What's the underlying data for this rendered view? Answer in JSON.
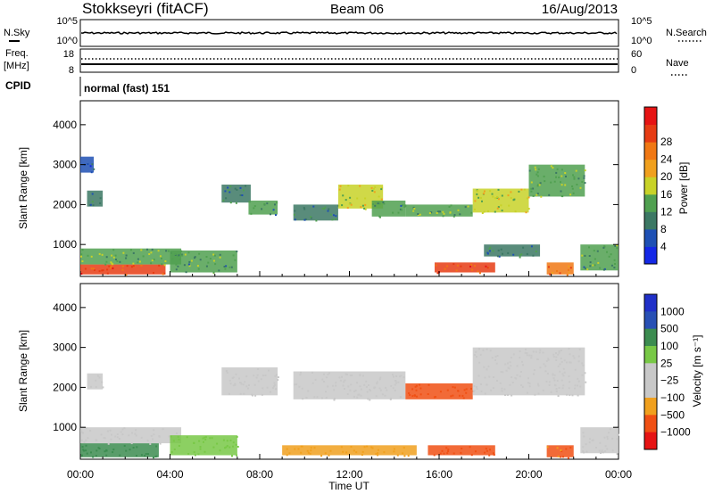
{
  "header": {
    "station": "Stokkseyri (fitACF)",
    "beam": "Beam 06",
    "date": "16/Aug/2013"
  },
  "top_panel": {
    "left_label": "N.Sky",
    "right_label": "N.Search",
    "ticks_left": [
      "10^5",
      "10^0"
    ],
    "ticks_right": [
      "10^5",
      "10^0"
    ]
  },
  "freq_panel": {
    "left_label_1": "Freq.",
    "left_label_2": "[MHz]",
    "ticks_left": [
      "18",
      "8"
    ],
    "right_label": "Nave",
    "ticks_right": [
      "60",
      "0"
    ]
  },
  "cpid": {
    "label": "CPID",
    "value": "normal (fast) 151"
  },
  "colors": {
    "power_scale": [
      "#1428e6",
      "#1e50b4",
      "#3c7864",
      "#50a050",
      "#c8d228",
      "#f0a01e",
      "#f07814",
      "#e63c14",
      "#e61414"
    ],
    "velocity_scale": [
      "#e61414",
      "#f05014",
      "#f0a01e",
      "#c8c8c8",
      "#c8c8c8",
      "#78c846",
      "#3c8c50",
      "#2850b4",
      "#2030c8"
    ]
  },
  "chart_data": [
    {
      "type": "heatmap",
      "name": "power",
      "ylabel": "Slant Range [km]",
      "xlabel": "",
      "x_ticks": [
        "00:00",
        "04:00",
        "08:00",
        "12:00",
        "16:00",
        "20:00",
        "00:00"
      ],
      "y_ticks": [
        "1000",
        "2000",
        "3000",
        "4000"
      ],
      "ylim": [
        200,
        4600
      ],
      "colorbar": {
        "label": "Power [dB]",
        "ticks": [
          "4",
          "8",
          "12",
          "16",
          "20",
          "24",
          "28"
        ]
      },
      "regions": [
        {
          "t0": 0.0,
          "t1": 3.8,
          "r0": 250,
          "r1": 500,
          "value": 24
        },
        {
          "t0": 0.0,
          "t1": 4.5,
          "r0": 500,
          "r1": 900,
          "value": 12
        },
        {
          "t0": 4.0,
          "t1": 7.0,
          "r0": 300,
          "r1": 850,
          "value": 10
        },
        {
          "t0": 0.3,
          "t1": 1.0,
          "r0": 1950,
          "r1": 2350,
          "value": 8
        },
        {
          "t0": 0.0,
          "t1": 0.6,
          "r0": 2800,
          "r1": 3200,
          "value": 6
        },
        {
          "t0": 6.3,
          "t1": 7.6,
          "r0": 2050,
          "r1": 2500,
          "value": 8
        },
        {
          "t0": 7.5,
          "t1": 8.8,
          "r0": 1750,
          "r1": 2100,
          "value": 10
        },
        {
          "t0": 9.5,
          "t1": 11.5,
          "r0": 1600,
          "r1": 2000,
          "value": 8
        },
        {
          "t0": 11.5,
          "t1": 13.5,
          "r0": 1900,
          "r1": 2500,
          "value": 14
        },
        {
          "t0": 13.0,
          "t1": 14.5,
          "r0": 1700,
          "r1": 2100,
          "value": 10
        },
        {
          "t0": 14.5,
          "t1": 17.5,
          "r0": 1700,
          "r1": 2000,
          "value": 12
        },
        {
          "t0": 15.8,
          "t1": 18.5,
          "r0": 300,
          "r1": 550,
          "value": 24
        },
        {
          "t0": 17.5,
          "t1": 20.0,
          "r0": 1800,
          "r1": 2400,
          "value": 14
        },
        {
          "t0": 20.0,
          "t1": 22.5,
          "r0": 2200,
          "r1": 3000,
          "value": 12
        },
        {
          "t0": 20.8,
          "t1": 22.0,
          "r0": 250,
          "r1": 550,
          "value": 22
        },
        {
          "t0": 22.3,
          "t1": 24.0,
          "r0": 350,
          "r1": 1000,
          "value": 10
        },
        {
          "t0": 18.0,
          "t1": 20.5,
          "r0": 700,
          "r1": 1000,
          "value": 8
        }
      ]
    },
    {
      "type": "heatmap",
      "name": "velocity",
      "ylabel": "Slant Range [km]",
      "xlabel": "Time UT",
      "x_ticks": [
        "00:00",
        "04:00",
        "08:00",
        "12:00",
        "16:00",
        "20:00",
        "00:00"
      ],
      "y_ticks": [
        "1000",
        "2000",
        "3000",
        "4000"
      ],
      "ylim": [
        200,
        4600
      ],
      "colorbar": {
        "label": "Velocity [m s⁻¹]",
        "ticks": [
          "1000",
          "500",
          "100",
          "25",
          "−25",
          "−100",
          "−500",
          "−1000"
        ]
      },
      "regions": [
        {
          "t0": 0.0,
          "t1": 3.5,
          "r0": 250,
          "r1": 600,
          "value": 150
        },
        {
          "t0": 0.0,
          "t1": 4.5,
          "r0": 600,
          "r1": 1000,
          "value": 0
        },
        {
          "t0": 4.0,
          "t1": 7.0,
          "r0": 300,
          "r1": 800,
          "value": 50
        },
        {
          "t0": 0.3,
          "t1": 1.0,
          "r0": 1950,
          "r1": 2350,
          "value": 0
        },
        {
          "t0": 6.3,
          "t1": 8.8,
          "r0": 1800,
          "r1": 2500,
          "value": 0
        },
        {
          "t0": 9.5,
          "t1": 14.5,
          "r0": 1700,
          "r1": 2400,
          "value": 0
        },
        {
          "t0": 14.5,
          "t1": 17.5,
          "r0": 1700,
          "r1": 2100,
          "value": -150
        },
        {
          "t0": 15.5,
          "t1": 18.5,
          "r0": 300,
          "r1": 550,
          "value": -250
        },
        {
          "t0": 17.5,
          "t1": 22.5,
          "r0": 1800,
          "r1": 3000,
          "value": 0
        },
        {
          "t0": 20.8,
          "t1": 22.0,
          "r0": 250,
          "r1": 550,
          "value": -100
        },
        {
          "t0": 22.3,
          "t1": 24.0,
          "r0": 350,
          "r1": 1000,
          "value": 0
        },
        {
          "t0": 9.0,
          "t1": 15.0,
          "r0": 300,
          "r1": 550,
          "value": -80
        }
      ]
    }
  ]
}
